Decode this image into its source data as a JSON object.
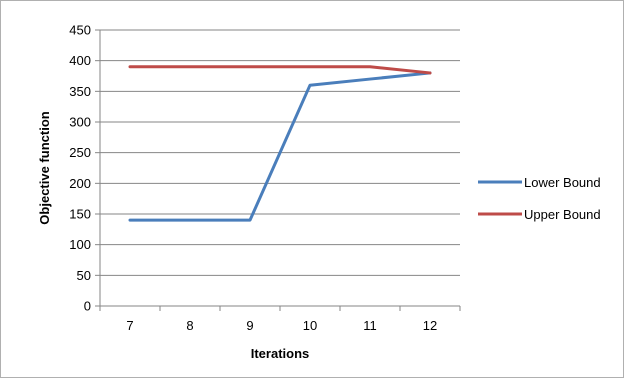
{
  "chart_data": {
    "type": "line",
    "title": "",
    "xlabel": "Iterations",
    "ylabel": "Objective function",
    "x": [
      "7",
      "8",
      "9",
      "10",
      "11",
      "12"
    ],
    "ylim": [
      0,
      450
    ],
    "yticks": [
      0,
      50,
      100,
      150,
      200,
      250,
      300,
      350,
      400,
      450
    ],
    "grid": "horizontal",
    "legend_position": "right",
    "series": [
      {
        "name": "Lower Bound",
        "color": "#4a7ebb",
        "values": [
          140,
          140,
          140,
          360,
          370,
          380
        ]
      },
      {
        "name": "Upper Bound",
        "color": "#be4b48",
        "values": [
          390,
          390,
          390,
          390,
          390,
          380
        ]
      }
    ]
  }
}
